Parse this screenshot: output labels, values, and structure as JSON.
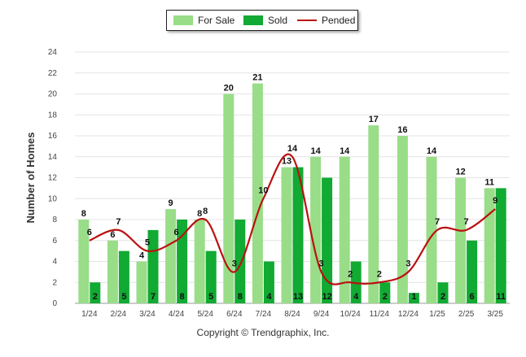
{
  "chart_data": {
    "type": "bar",
    "ylabel": "Number of Homes",
    "ylim": [
      0,
      24
    ],
    "yticks": [
      0,
      2,
      4,
      6,
      8,
      10,
      12,
      14,
      16,
      18,
      20,
      22,
      24
    ],
    "categories": [
      "1/24",
      "2/24",
      "3/24",
      "4/24",
      "5/24",
      "6/24",
      "7/24",
      "8/24",
      "9/24",
      "10/24",
      "11/24",
      "12/24",
      "1/25",
      "2/25",
      "3/25"
    ],
    "series": [
      {
        "name": "For Sale",
        "kind": "bar",
        "color": "#99dd88",
        "values": [
          8,
          6,
          4,
          9,
          8,
          20,
          21,
          13,
          14,
          14,
          17,
          16,
          14,
          12,
          11
        ]
      },
      {
        "name": "Sold",
        "kind": "bar",
        "color": "#11aa33",
        "values": [
          2,
          5,
          7,
          8,
          5,
          8,
          4,
          13,
          12,
          4,
          2,
          1,
          2,
          6,
          11
        ]
      },
      {
        "name": "Pended",
        "kind": "line",
        "color": "#bb1111",
        "values": [
          6,
          7,
          5,
          6,
          8,
          3,
          10,
          14,
          3,
          2,
          2,
          3,
          7,
          7,
          9
        ]
      }
    ],
    "grid": true,
    "legend_position": "top-center"
  },
  "footer": {
    "copyright": "Copyright © Trendgraphix, Inc."
  }
}
